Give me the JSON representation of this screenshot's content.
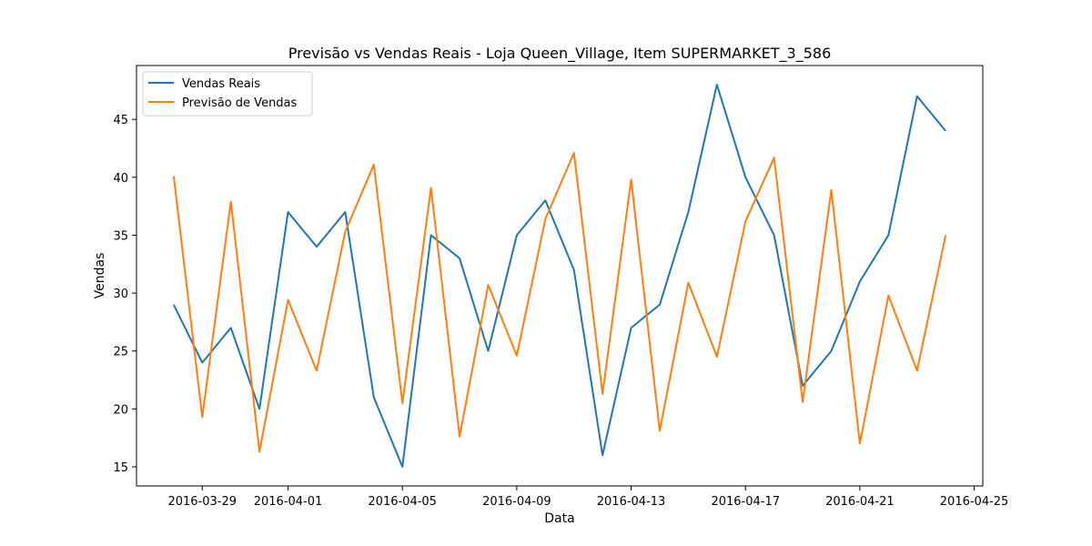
{
  "chart_data": {
    "type": "line",
    "title": "Previsão vs Vendas Reais - Loja Queen_Village, Item SUPERMARKET_3_586",
    "xlabel": "Data",
    "ylabel": "Vendas",
    "x_start": "2016-03-28",
    "x_end": "2016-04-24",
    "xlim": [
      "2016-03-26T16:48",
      "2016-04-25T07:12"
    ],
    "ylim": [
      13.35,
      49.65
    ],
    "x_ticks": [
      {
        "date": "2016-03-29",
        "label": "2016-03-29"
      },
      {
        "date": "2016-04-01",
        "label": "2016-04-01"
      },
      {
        "date": "2016-04-05",
        "label": "2016-04-05"
      },
      {
        "date": "2016-04-09",
        "label": "2016-04-09"
      },
      {
        "date": "2016-04-13",
        "label": "2016-04-13"
      },
      {
        "date": "2016-04-17",
        "label": "2016-04-17"
      },
      {
        "date": "2016-04-21",
        "label": "2016-04-21"
      },
      {
        "date": "2016-04-25",
        "label": "2016-04-25"
      }
    ],
    "y_ticks": [
      15,
      20,
      25,
      30,
      35,
      40,
      45
    ],
    "grid": false,
    "legend_position": "upper-left",
    "series": [
      {
        "name": "Vendas Reais",
        "color": "#1f77b4",
        "values": [
          29,
          24,
          27,
          20,
          37,
          34,
          37,
          21,
          15,
          35,
          33,
          25,
          35,
          38,
          32,
          16,
          27,
          29,
          37,
          48,
          40,
          35,
          22,
          25,
          31,
          35,
          47,
          44
        ]
      },
      {
        "name": "Previsão de Vendas",
        "color": "#ff7f0e",
        "values": [
          40.1,
          19.3,
          37.9,
          16.3,
          29.4,
          23.3,
          35.3,
          41.1,
          20.5,
          39.1,
          17.6,
          30.7,
          24.6,
          36.4,
          42.1,
          21.3,
          39.8,
          18.1,
          30.9,
          24.5,
          36.2,
          41.7,
          20.6,
          38.9,
          17.0,
          29.8,
          23.3,
          35.0
        ]
      }
    ]
  }
}
